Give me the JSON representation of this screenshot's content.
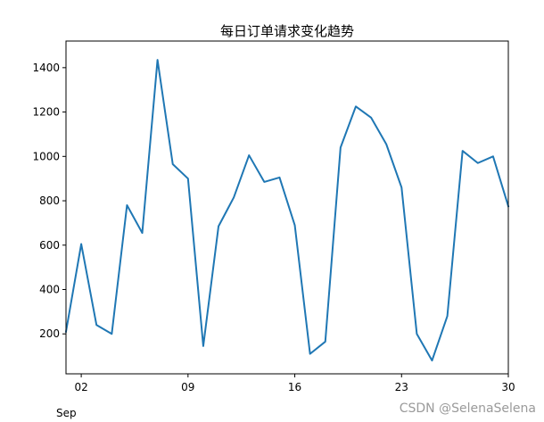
{
  "chart_data": {
    "type": "line",
    "title": "每日订单请求变化趋势",
    "xlabel": "",
    "ylabel": "",
    "x_axis": {
      "start": "2023-09-01",
      "end": "2023-09-30",
      "tick_dates": [
        "2023-09-02",
        "2023-09-09",
        "2023-09-16",
        "2023-09-23",
        "2023-09-30"
      ],
      "tick_labels": [
        "02",
        "09",
        "16",
        "23",
        "30"
      ],
      "offset_label": "Sep"
    },
    "ylim": [
      20,
      1520
    ],
    "y_ticks": [
      200,
      400,
      600,
      800,
      1000,
      1200,
      1400
    ],
    "grid": false,
    "legend": "none",
    "series": [
      {
        "color": "#1f77b4",
        "points": [
          [
            "2023-09-01",
            210
          ],
          [
            "2023-09-02",
            605
          ],
          [
            "2023-09-03",
            240
          ],
          [
            "2023-09-04",
            200
          ],
          [
            "2023-09-05",
            780
          ],
          [
            "2023-09-06",
            655
          ],
          [
            "2023-09-07",
            1435
          ],
          [
            "2023-09-08",
            965
          ],
          [
            "2023-09-09",
            900
          ],
          [
            "2023-09-10",
            145
          ],
          [
            "2023-09-11",
            685
          ],
          [
            "2023-09-12",
            815
          ],
          [
            "2023-09-13",
            1005
          ],
          [
            "2023-09-14",
            885
          ],
          [
            "2023-09-15",
            905
          ],
          [
            "2023-09-16",
            690
          ],
          [
            "2023-09-17",
            110
          ],
          [
            "2023-09-18",
            165
          ],
          [
            "2023-09-19",
            1040
          ],
          [
            "2023-09-20",
            1225
          ],
          [
            "2023-09-21",
            1175
          ],
          [
            "2023-09-22",
            1055
          ],
          [
            "2023-09-23",
            860
          ],
          [
            "2023-09-24",
            200
          ],
          [
            "2023-09-25",
            80
          ],
          [
            "2023-09-26",
            280
          ],
          [
            "2023-09-27",
            1025
          ],
          [
            "2023-09-28",
            970
          ],
          [
            "2023-09-29",
            1000
          ],
          [
            "2023-09-30",
            775
          ]
        ]
      }
    ]
  },
  "watermark": "CSDN @SelenaSelena"
}
